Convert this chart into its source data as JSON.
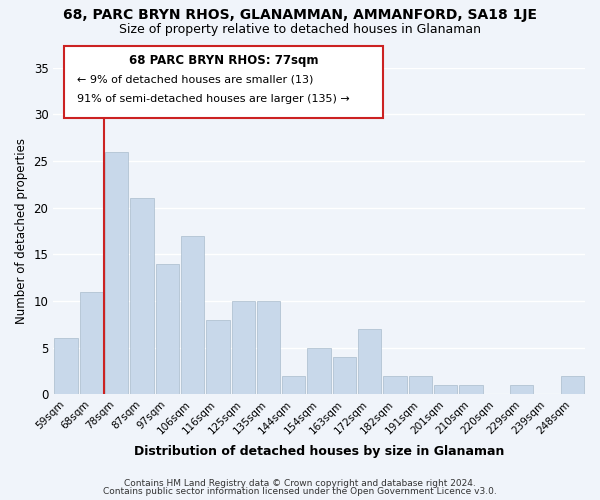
{
  "title": "68, PARC BRYN RHOS, GLANAMMAN, AMMANFORD, SA18 1JE",
  "subtitle": "Size of property relative to detached houses in Glanaman",
  "xlabel": "Distribution of detached houses by size in Glanaman",
  "ylabel": "Number of detached properties",
  "bar_color": "#c8d8ea",
  "highlight_color": "#cc2222",
  "categories": [
    "59sqm",
    "68sqm",
    "78sqm",
    "87sqm",
    "97sqm",
    "106sqm",
    "116sqm",
    "125sqm",
    "135sqm",
    "144sqm",
    "154sqm",
    "163sqm",
    "172sqm",
    "182sqm",
    "191sqm",
    "201sqm",
    "210sqm",
    "220sqm",
    "229sqm",
    "239sqm",
    "248sqm"
  ],
  "values": [
    6,
    11,
    26,
    21,
    14,
    17,
    8,
    10,
    10,
    2,
    5,
    4,
    7,
    2,
    2,
    1,
    1,
    0,
    1,
    0,
    2
  ],
  "highlight_bin_index": 2,
  "ylim": [
    0,
    35
  ],
  "yticks": [
    0,
    5,
    10,
    15,
    20,
    25,
    30,
    35
  ],
  "annotation_title": "68 PARC BRYN RHOS: 77sqm",
  "annotation_line1": "← 9% of detached houses are smaller (13)",
  "annotation_line2": "91% of semi-detached houses are larger (135) →",
  "footnote1": "Contains HM Land Registry data © Crown copyright and database right 2024.",
  "footnote2": "Contains public sector information licensed under the Open Government Licence v3.0.",
  "background_color": "#f0f4fa",
  "grid_color": "#ffffff"
}
